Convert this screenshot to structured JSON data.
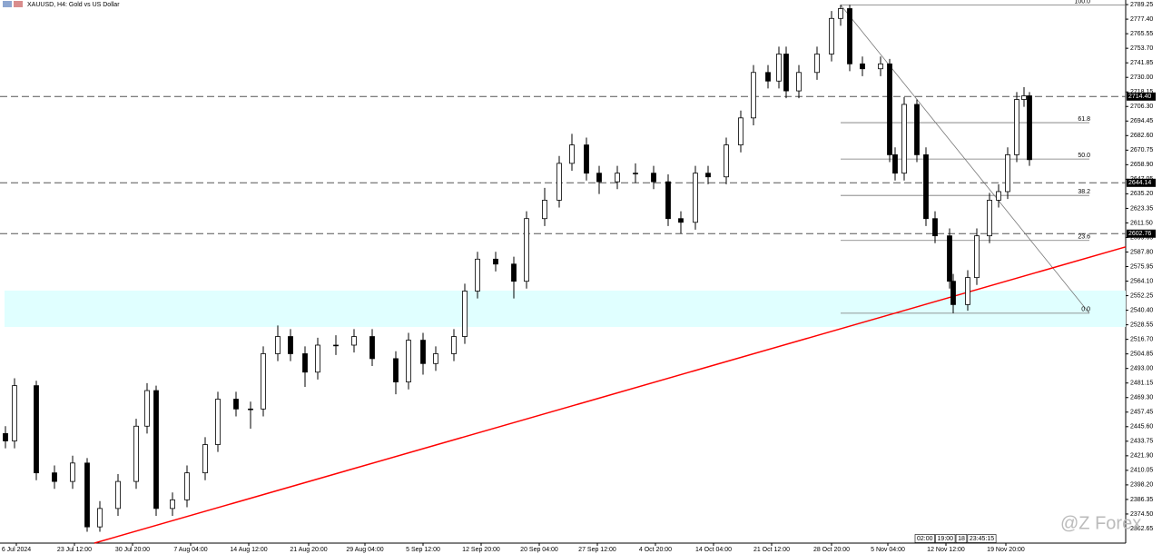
{
  "chart_data": {
    "type": "candlestick",
    "title": "XAUUSD, H4: Gold vs US Dollar",
    "x": [
      3,
      8,
      20,
      30,
      40,
      48,
      55,
      65,
      75,
      81,
      86,
      95,
      103,
      113,
      120,
      130,
      138,
      145,
      153,
      160,
      168,
      175,
      185,
      195,
      205,
      218,
      225,
      233,
      240,
      250,
      256,
      263,
      273,
      283,
      290,
      300,
      308,
      315,
      323,
      330,
      340,
      350,
      360,
      368,
      375,
      383,
      390,
      400,
      408,
      415,
      423,
      429,
      433,
      440,
      450,
      458,
      463,
      468,
      475,
      485,
      490,
      493,
      498,
      505,
      510,
      515,
      523,
      525,
      533,
      538,
      545,
      550,
      555,
      560,
      564,
      567
    ],
    "open": [
      2440,
      2434,
      2479,
      2408,
      2401,
      2416,
      2364,
      2379,
      2401,
      2446,
      2475,
      2379,
      2386,
      2408,
      2431,
      2468,
      2460,
      2460,
      2505,
      2519,
      2505,
      2490,
      2512,
      2512,
      2519,
      2501,
      2482,
      2516,
      2497,
      2505,
      2519,
      2556,
      2582,
      2578,
      2564,
      2615,
      2630,
      2660,
      2675,
      2652,
      2645,
      2652,
      2652,
      2645,
      2615,
      2612,
      2652,
      2649,
      2675,
      2697,
      2734,
      2727,
      2749,
      2719,
      2734,
      2749,
      2778,
      2786,
      2741,
      2737,
      2741,
      2667,
      2652,
      2708,
      2667,
      2615,
      2601,
      2564,
      2545,
      2567,
      2601,
      2630,
      2637,
      2667,
      2712,
      2715
    ],
    "high": [
      2446,
      2485,
      2483,
      2414,
      2422,
      2420,
      2385,
      2407,
      2452,
      2481,
      2479,
      2392,
      2414,
      2437,
      2474,
      2474,
      2466,
      2511,
      2528,
      2525,
      2511,
      2518,
      2520,
      2525,
      2525,
      2507,
      2522,
      2522,
      2511,
      2525,
      2562,
      2588,
      2588,
      2584,
      2621,
      2640,
      2666,
      2684,
      2681,
      2658,
      2658,
      2660,
      2658,
      2651,
      2621,
      2658,
      2658,
      2681,
      2703,
      2740,
      2740,
      2755,
      2755,
      2740,
      2755,
      2784,
      2789,
      2789,
      2747,
      2747,
      2745,
      2673,
      2714,
      2712,
      2673,
      2621,
      2607,
      2570,
      2573,
      2607,
      2636,
      2643,
      2673,
      2718,
      2722,
      2718
    ],
    "low": [
      2428,
      2428,
      2402,
      2395,
      2395,
      2360,
      2360,
      2373,
      2395,
      2440,
      2373,
      2373,
      2380,
      2402,
      2425,
      2454,
      2444,
      2454,
      2499,
      2499,
      2478,
      2484,
      2504,
      2506,
      2495,
      2472,
      2476,
      2488,
      2491,
      2499,
      2513,
      2550,
      2572,
      2550,
      2558,
      2609,
      2624,
      2654,
      2646,
      2635,
      2639,
      2644,
      2639,
      2609,
      2603,
      2606,
      2643,
      2643,
      2669,
      2691,
      2721,
      2721,
      2713,
      2713,
      2728,
      2743,
      2772,
      2735,
      2731,
      2731,
      2661,
      2646,
      2646,
      2661,
      2609,
      2595,
      2558,
      2538,
      2540,
      2561,
      2595,
      2624,
      2631,
      2661,
      2706,
      2658
    ],
    "close": [
      2434,
      2479,
      2408,
      2401,
      2416,
      2364,
      2379,
      2401,
      2446,
      2475,
      2379,
      2386,
      2408,
      2431,
      2468,
      2460,
      2460,
      2505,
      2519,
      2505,
      2490,
      2512,
      2512,
      2519,
      2501,
      2482,
      2516,
      2497,
      2505,
      2519,
      2556,
      2582,
      2578,
      2564,
      2615,
      2630,
      2660,
      2675,
      2652,
      2645,
      2652,
      2652,
      2645,
      2615,
      2612,
      2652,
      2649,
      2675,
      2697,
      2734,
      2727,
      2749,
      2719,
      2734,
      2749,
      2778,
      2786,
      2741,
      2737,
      2741,
      2667,
      2652,
      2708,
      2667,
      2615,
      2601,
      2564,
      2545,
      2567,
      2601,
      2630,
      2637,
      2667,
      2712,
      2715,
      2663
    ],
    "xlim": [
      0,
      620
    ],
    "xticks": [
      {
        "value": 9,
        "label": "6 Jul 2024"
      },
      {
        "value": 41,
        "label": "23 Jul 12:00"
      },
      {
        "value": 73,
        "label": "30 Jul 20:00"
      },
      {
        "value": 105,
        "label": "7 Aug 04:00"
      },
      {
        "value": 137,
        "label": "14 Aug 12:00"
      },
      {
        "value": 170,
        "label": "21 Aug 20:00"
      },
      {
        "value": 201,
        "label": "29 Aug 04:00"
      },
      {
        "value": 233,
        "label": "5 Sep 12:00"
      },
      {
        "value": 265,
        "label": "12 Sep 20:00"
      },
      {
        "value": 297,
        "label": "20 Sep 04:00"
      },
      {
        "value": 329,
        "label": "27 Sep 12:00"
      },
      {
        "value": 361,
        "label": "4 Oct 20:00"
      },
      {
        "value": 393,
        "label": "14 Oct 04:00"
      },
      {
        "value": 425,
        "label": "21 Oct 12:00"
      },
      {
        "value": 458,
        "label": "28 Oct 20:00"
      },
      {
        "value": 489,
        "label": "5 Nov 04:00"
      },
      {
        "value": 521,
        "label": "12 Nov 12:00"
      },
      {
        "value": 554,
        "label": "19 Nov 20:00"
      }
    ],
    "ylim": [
      2350.8,
      2793.0
    ],
    "yticks": [
      2789.25,
      {
        "value": 2777.4,
        "label": "2777.40"
      },
      2765.55,
      {
        "value": 2753.7,
        "label": "2753.70"
      },
      2741.85,
      {
        "value": 2730,
        "label": "2730.00"
      },
      2718.15,
      {
        "value": 2706.3,
        "label": "2706.30"
      },
      2694.45,
      {
        "value": 2682.6,
        "label": "2682.60"
      },
      2670.75,
      {
        "value": 2658.9,
        "label": "2658.90"
      },
      2647.05,
      {
        "value": 2635.2,
        "label": "2635.20"
      },
      2623.35,
      {
        "value": 2611.5,
        "label": "2611.50"
      },
      2599.65,
      {
        "value": 2587.8,
        "label": "2587.80"
      },
      2575.95,
      {
        "value": 2564.1,
        "label": "2564.10"
      },
      2552.25,
      {
        "value": 2540.4,
        "label": "2540.40"
      },
      2528.55,
      {
        "value": 2516.7,
        "label": "2516.70"
      },
      2504.85,
      {
        "value": 2493,
        "label": "2493.00"
      },
      2481.15,
      {
        "value": 2469.3,
        "label": "2469.30"
      },
      2457.45,
      {
        "value": 2445.6,
        "label": "2445.60"
      },
      2433.75,
      {
        "value": 2421.9,
        "label": "2421.90"
      },
      2410.05,
      {
        "value": 2398.2,
        "label": "2398.20"
      },
      2386.35,
      {
        "value": 2374.5,
        "label": "2374.50"
      },
      2362.65
    ],
    "hlines": [
      {
        "value": 2714.4,
        "label": "2714.40"
      },
      {
        "value": 2644.14,
        "label": "2644.14"
      },
      {
        "value": 2602.76,
        "label": "2602.76"
      }
    ],
    "zone": {
      "from": 2526.8,
      "to": 2556.4,
      "color": "#e0ffff"
    },
    "trendline": {
      "x": [
        52,
        620
      ],
      "y": [
        2350.8,
        2592
      ],
      "color": "#ff0000"
    },
    "fibonacci": {
      "x": [
        463,
        600
      ],
      "high": 2789,
      "low": 2538,
      "levels": [
        {
          "value": 100,
          "label": "100.0"
        },
        61.8,
        {
          "value": 50,
          "label": "50.0"
        },
        38.2,
        23.6,
        {
          "value": 0,
          "label": "0.0"
        }
      ]
    },
    "time_markers": [
      "02:00",
      "19:00",
      "18",
      "23:45:15"
    ],
    "watermark": "@Z Forex"
  }
}
